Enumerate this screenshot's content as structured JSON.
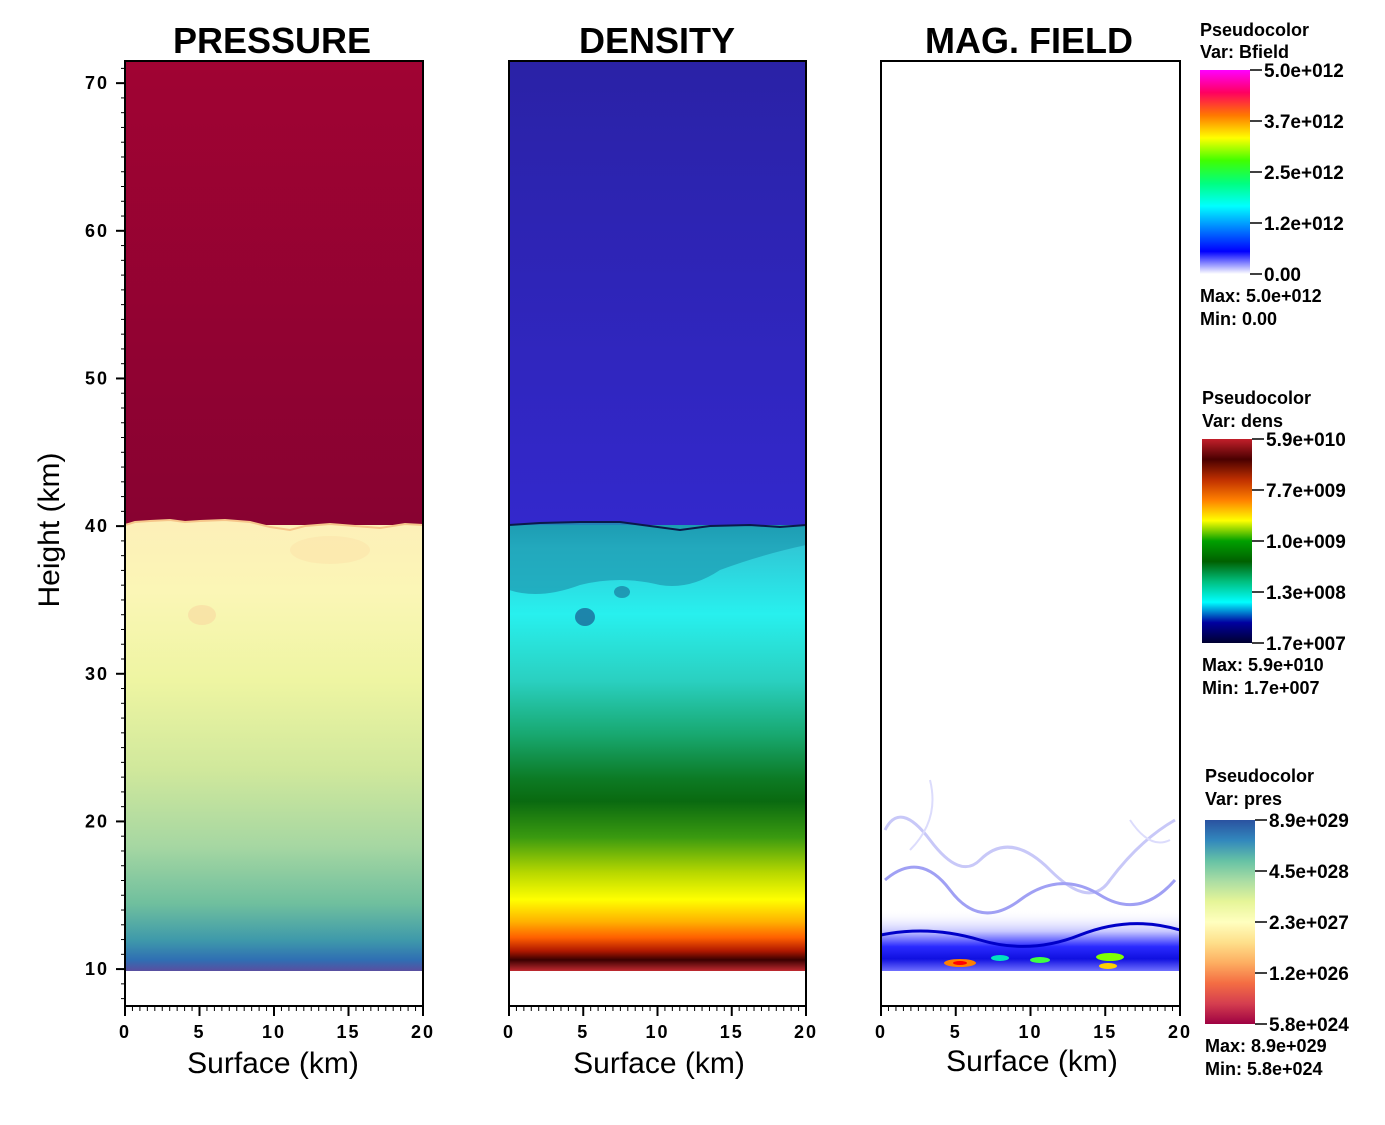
{
  "y_axis_label": "Height (km)",
  "y_ticks": [
    "10",
    "20",
    "30",
    "40",
    "50",
    "60",
    "70"
  ],
  "x_ticks": [
    "0",
    "5",
    "10",
    "15",
    "20"
  ],
  "chart_data": [
    {
      "type": "heatmap",
      "title": "PRESSURE",
      "variable": "pres",
      "xlabel": "Surface (km)",
      "ylabel": "Height (km)",
      "xlim": [
        0,
        20
      ],
      "ylim": [
        7.5,
        71.5
      ],
      "data_extent_y": [
        10,
        71.5
      ],
      "interface_height_km": 40,
      "colorscale": [
        "#9e0142",
        "#d53e4f",
        "#f46d43",
        "#fdae61",
        "#fee08b",
        "#ffffbf",
        "#e6f598",
        "#abdda4",
        "#66c2a5",
        "#3288bd",
        "#5e4fa2"
      ]
    },
    {
      "type": "heatmap",
      "title": "DENSITY",
      "variable": "dens",
      "xlabel": "Surface (km)",
      "ylabel": "Height (km)",
      "xlim": [
        0,
        20
      ],
      "ylim": [
        7.5,
        71.5
      ],
      "data_extent_y": [
        10,
        71.5
      ],
      "interface_height_km": 40
    },
    {
      "type": "heatmap",
      "title": "MAG. FIELD",
      "variable": "Bfield",
      "xlabel": "Surface (km)",
      "ylabel": "Height (km)",
      "xlim": [
        0,
        20
      ],
      "ylim": [
        7.5,
        71.5
      ],
      "active_region_top_km": 24
    }
  ],
  "legends": [
    {
      "title": "Pseudocolor",
      "var": "Var: Bfield",
      "labels": [
        "5.0e+012",
        "3.7e+012",
        "2.5e+012",
        "1.2e+012",
        "0.00"
      ],
      "max": "Max:  5.0e+012",
      "min": "Min:  0.00",
      "colors": [
        "#ff00ff",
        "#ff0060",
        "#ff7800",
        "#ffff00",
        "#40ff00",
        "#00ff80",
        "#00ffff",
        "#0080ff",
        "#0000ff",
        "#ffffff"
      ]
    },
    {
      "title": "Pseudocolor",
      "var": "Var: dens",
      "labels": [
        "5.9e+010",
        "7.7e+009",
        "1.0e+009",
        "1.3e+008",
        "1.7e+007"
      ],
      "max": "Max:  5.9e+010",
      "min": "Min:  1.7e+007",
      "colors": [
        "#c21f2a",
        "#4a0000",
        "#c03000",
        "#ff8000",
        "#ffff00",
        "#00a000",
        "#006000",
        "#00c080",
        "#00ffff",
        "#0000a0",
        "#000030"
      ]
    },
    {
      "title": "Pseudocolor",
      "var": "Var: pres",
      "labels": [
        "8.9e+029",
        "4.5e+028",
        "2.3e+027",
        "1.2e+026",
        "5.8e+024"
      ],
      "max": "Max:  8.9e+029",
      "min": "Min:  5.8e+024",
      "colors": [
        "#2a52a0",
        "#3288bd",
        "#66c2a5",
        "#abdda4",
        "#e6f598",
        "#ffffbf",
        "#fee08b",
        "#fdae61",
        "#f46d43",
        "#d53e4f",
        "#9e0142"
      ]
    }
  ]
}
